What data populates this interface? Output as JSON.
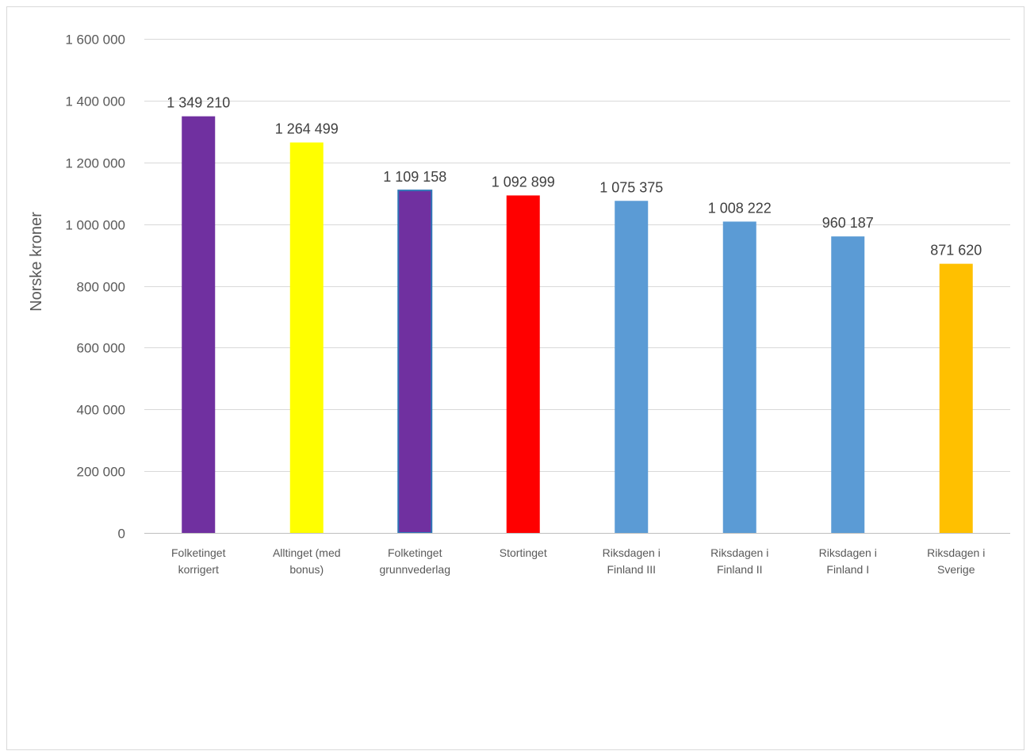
{
  "chart_data": {
    "type": "bar",
    "title": "",
    "ylabel": "Norske kroner",
    "xlabel": "",
    "ylim": [
      0,
      1600000
    ],
    "yticks": [
      0,
      200000,
      400000,
      600000,
      800000,
      1000000,
      1200000,
      1400000,
      1600000
    ],
    "ytick_labels": [
      "0",
      "200 000",
      "400 000",
      "600 000",
      "800 000",
      "1 000 000",
      "1 200 000",
      "1 400 000",
      "1 600 000"
    ],
    "grid": true,
    "categories": [
      [
        "Folketinget",
        "korrigert"
      ],
      [
        "Alltinget (med",
        "bonus)"
      ],
      [
        "Folketinget",
        "grunnvederlag"
      ],
      [
        "Stortinget"
      ],
      [
        "Riksdagen i",
        "Finland III"
      ],
      [
        "Riksdagen i",
        "Finland II"
      ],
      [
        "Riksdagen i",
        "Finland I"
      ],
      [
        "Riksdagen i",
        "Sverige"
      ]
    ],
    "values": [
      1349210,
      1264499,
      1109158,
      1092899,
      1075375,
      1008222,
      960187,
      871620
    ],
    "value_labels": [
      "1 349 210",
      "1 264 499",
      "1 109 158",
      "1 092 899",
      "1 075 375",
      "1 008 222",
      "960 187",
      "871 620"
    ],
    "colors": [
      "#7030a0",
      "#ffff00",
      "#7030a0",
      "#ff0000",
      "#5b9bd5",
      "#5b9bd5",
      "#5b9bd5",
      "#ffc000"
    ],
    "outline_colors": [
      "none",
      "none",
      "#2e75b6",
      "none",
      "none",
      "none",
      "none",
      "none"
    ]
  }
}
